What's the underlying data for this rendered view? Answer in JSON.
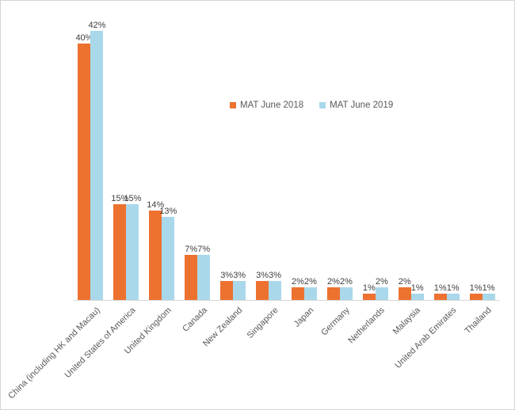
{
  "chart_data": {
    "type": "bar",
    "title": "",
    "xlabel": "",
    "ylabel": "",
    "categories": [
      "China (including HK and Macau)",
      "United States of America",
      "United Kingdom",
      "Canada",
      "New Zealand",
      "Singapore",
      "Japan",
      "Germany",
      "Netherlands",
      "Malaysia",
      "United Arab Emirates",
      "Thailand"
    ],
    "series": [
      {
        "name": "MAT June 2018",
        "color": "#ED7230",
        "values": [
          40,
          15,
          14,
          7,
          3,
          3,
          2,
          2,
          1,
          2,
          1,
          1
        ]
      },
      {
        "name": "MAT June 2019",
        "color": "#A9D8EA",
        "values": [
          42,
          15,
          13,
          7,
          3,
          3,
          2,
          2,
          2,
          1,
          1,
          1
        ]
      }
    ],
    "data_labels": true,
    "data_label_format": "{v}%",
    "ylim": [
      0,
      45
    ],
    "grid": false,
    "y_axis_visible": false,
    "legend_position": "top-center"
  },
  "colors": {
    "background": "#FFFFFF",
    "border": "#D5D5D5",
    "axis_line": "#D9D9D9",
    "data_label_text": "#404040",
    "category_label_text": "#595959",
    "legend_text": "#595959"
  }
}
